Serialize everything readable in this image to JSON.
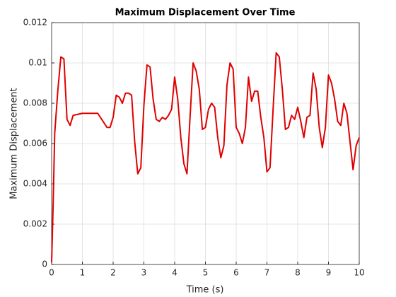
{
  "chart_data": {
    "type": "line",
    "title": "Maximum Displacement Over Time",
    "xlabel": "Time (s)",
    "ylabel": "Maximum Displacement",
    "x": [
      0,
      0.05,
      0.1,
      0.2,
      0.3,
      0.4,
      0.5,
      0.6,
      0.7,
      1.0,
      1.5,
      1.8,
      1.9,
      2.0,
      2.1,
      2.2,
      2.3,
      2.4,
      2.5,
      2.6,
      2.7,
      2.8,
      2.9,
      3.0,
      3.1,
      3.2,
      3.3,
      3.4,
      3.5,
      3.6,
      3.7,
      3.8,
      3.9,
      4.0,
      4.1,
      4.2,
      4.3,
      4.4,
      4.5,
      4.6,
      4.7,
      4.8,
      4.9,
      5.0,
      5.1,
      5.2,
      5.3,
      5.4,
      5.5,
      5.6,
      5.7,
      5.8,
      5.9,
      6.0,
      6.1,
      6.2,
      6.3,
      6.4,
      6.5,
      6.6,
      6.7,
      6.8,
      6.9,
      7.0,
      7.1,
      7.2,
      7.3,
      7.4,
      7.5,
      7.6,
      7.7,
      7.8,
      7.9,
      8.0,
      8.1,
      8.2,
      8.3,
      8.4,
      8.5,
      8.6,
      8.7,
      8.8,
      8.9,
      9.0,
      9.1,
      9.2,
      9.3,
      9.4,
      9.5,
      9.6,
      9.7,
      9.8,
      9.9,
      10
    ],
    "series": [
      {
        "name": "Maximum Displacement",
        "color": "#e00000",
        "values": [
          0.0001,
          0.003,
          0.0065,
          0.0086,
          0.0103,
          0.0102,
          0.0072,
          0.0069,
          0.0074,
          0.0075,
          0.0075,
          0.0068,
          0.0068,
          0.0073,
          0.0084,
          0.0083,
          0.008,
          0.0085,
          0.0085,
          0.0084,
          0.0061,
          0.0045,
          0.0048,
          0.0079,
          0.0099,
          0.0098,
          0.0082,
          0.0072,
          0.0071,
          0.0073,
          0.0072,
          0.0074,
          0.0077,
          0.0093,
          0.0082,
          0.0063,
          0.005,
          0.0045,
          0.0073,
          0.01,
          0.0096,
          0.0087,
          0.0067,
          0.0068,
          0.0077,
          0.008,
          0.0078,
          0.0063,
          0.0053,
          0.0059,
          0.0089,
          0.01,
          0.0097,
          0.0068,
          0.0065,
          0.006,
          0.0068,
          0.0093,
          0.0081,
          0.0086,
          0.0086,
          0.0073,
          0.0063,
          0.0046,
          0.0048,
          0.0077,
          0.0105,
          0.0103,
          0.0087,
          0.0067,
          0.0068,
          0.0074,
          0.0072,
          0.0078,
          0.0071,
          0.0063,
          0.0073,
          0.0074,
          0.0095,
          0.0087,
          0.0068,
          0.0058,
          0.0068,
          0.0094,
          0.009,
          0.0082,
          0.0071,
          0.0069,
          0.008,
          0.0075,
          0.0061,
          0.0047,
          0.0059,
          0.0063
        ]
      }
    ],
    "xlim": [
      0,
      10
    ],
    "xticks": [
      0,
      1,
      2,
      3,
      4,
      5,
      6,
      7,
      8,
      9,
      10
    ],
    "ylim": [
      0,
      0.012
    ],
    "yticks": [
      0,
      0.002,
      0.004,
      0.006,
      0.008,
      0.01,
      0.012
    ],
    "grid": true
  }
}
